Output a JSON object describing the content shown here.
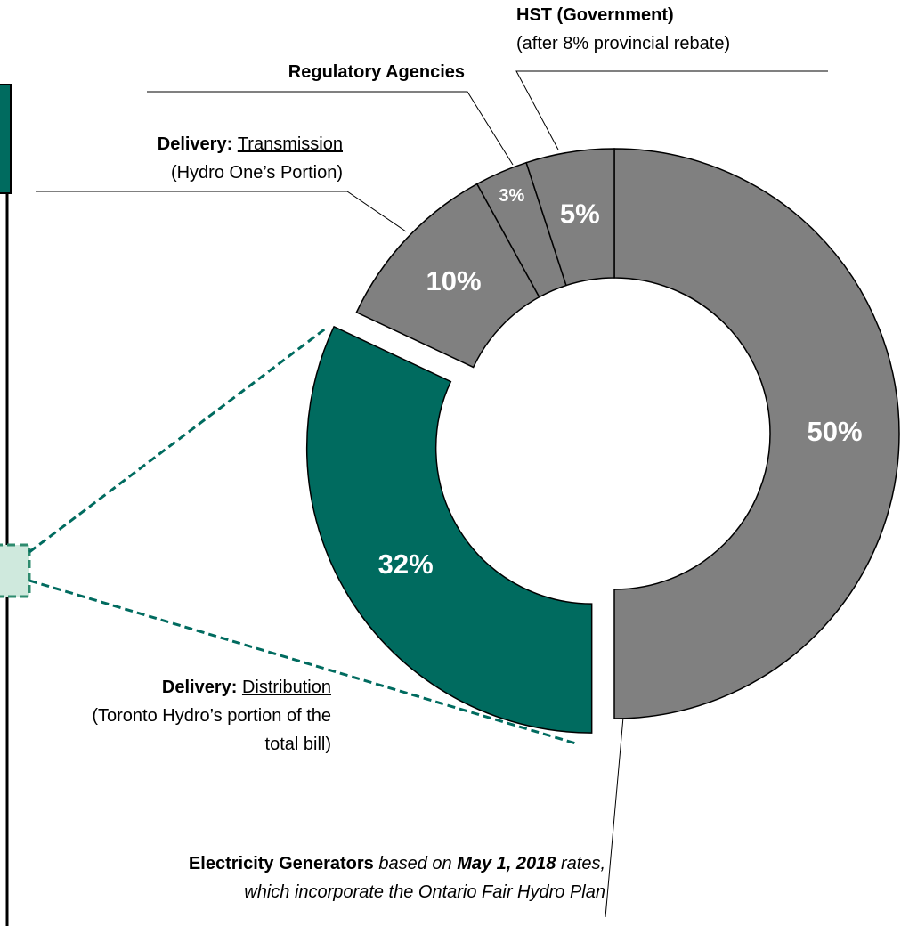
{
  "chart_data": {
    "type": "pie",
    "donut": true,
    "values": [
      50,
      32,
      10,
      3,
      5
    ],
    "value_labels": [
      "50%",
      "32%",
      "10%",
      "3%",
      "5%"
    ],
    "colors": [
      "#808080",
      "#006b5f",
      "#808080",
      "#808080",
      "#808080"
    ],
    "explode": [
      false,
      true,
      false,
      false,
      false
    ],
    "annotations": [
      {
        "lines": [
          [
            {
              "text": "Electricity Generators",
              "style": "bold"
            },
            {
              "text": " based on ",
              "style": "italic"
            },
            {
              "text": "May 1, 2018",
              "style": "bold-italic"
            },
            {
              "text": " rates,",
              "style": "italic"
            }
          ],
          [
            {
              "text": "which incorporate the Ontario Fair Hydro Plan",
              "style": "italic"
            }
          ]
        ]
      },
      {
        "lines": [
          [
            {
              "text": "Delivery: ",
              "style": "bold"
            },
            {
              "text": "Distribution",
              "style": "underline"
            }
          ],
          [
            {
              "text": "(Toronto Hydro’s portion of the",
              "style": "normal"
            }
          ],
          [
            {
              "text": "total bill)",
              "style": "normal"
            }
          ]
        ]
      },
      {
        "lines": [
          [
            {
              "text": "Delivery: ",
              "style": "bold"
            },
            {
              "text": "Transmission",
              "style": "underline"
            }
          ],
          [
            {
              "text": "(Hydro One’s Portion)",
              "style": "normal"
            }
          ]
        ]
      },
      {
        "lines": [
          [
            {
              "text": "Regulatory Agencies",
              "style": "bold"
            }
          ]
        ]
      },
      {
        "lines": [
          [
            {
              "text": "HST (Government)",
              "style": "bold"
            }
          ],
          [
            {
              "text": "(after 8% provincial rebate)",
              "style": "normal"
            }
          ]
        ]
      }
    ]
  }
}
